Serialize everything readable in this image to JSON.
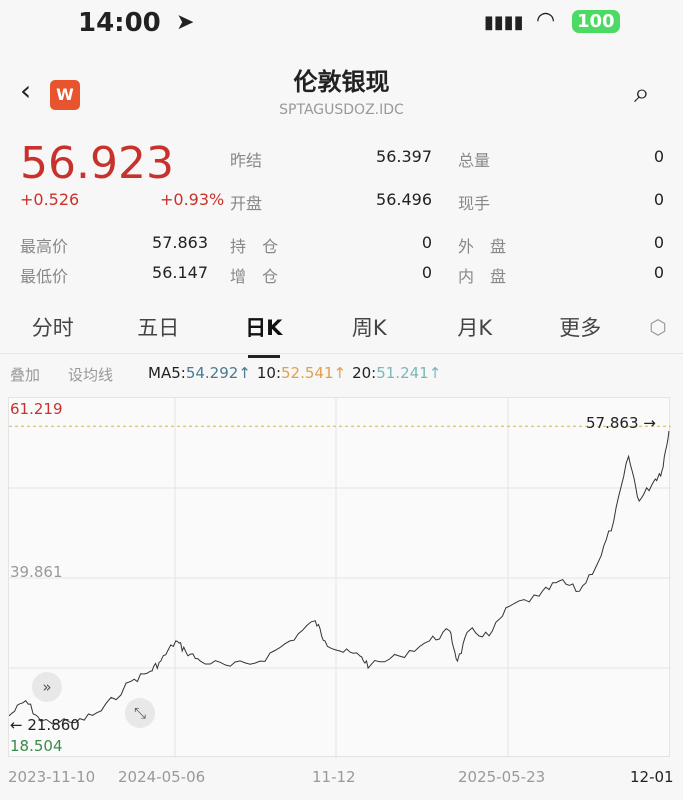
{
  "status": {
    "time": "14:00",
    "battery": "100"
  },
  "header": {
    "title": "伦敦银现",
    "code": "SPTAGUSDOZ.IDC",
    "logo": "W"
  },
  "quote": {
    "price": "56.923",
    "change": "+0.526",
    "change_pct": "+0.93%",
    "fields": [
      {
        "label": "昨结",
        "value": "56.397"
      },
      {
        "label": "总量",
        "value": "0"
      },
      {
        "label": "开盘",
        "value": "56.496"
      },
      {
        "label": "现手",
        "value": "0"
      },
      {
        "label": "最高价",
        "value": "57.863"
      },
      {
        "label": "持　仓",
        "value": "0"
      },
      {
        "label": "外　盘",
        "value": "0"
      },
      {
        "label": "最低价",
        "value": "56.147"
      },
      {
        "label": "增　仓",
        "value": "0"
      },
      {
        "label": "内　盘",
        "value": "0"
      }
    ]
  },
  "tabs": [
    {
      "label": "分时"
    },
    {
      "label": "五日"
    },
    {
      "label": "日K"
    },
    {
      "label": "周K"
    },
    {
      "label": "月K"
    },
    {
      "label": "更多"
    }
  ],
  "toolbar": {
    "overlay": "叠加",
    "ma_setting": "设均线",
    "ma5_label": "MA5:",
    "ma5": "54.292↑",
    "ma10_label": "10:",
    "ma10": "52.541↑",
    "ma20_label": "20:",
    "ma20": "51.241↑"
  },
  "colors": {
    "up": "#c8322d",
    "down": "#3a8a4a",
    "ma5": "#4a7a90",
    "ma10": "#e0a050",
    "ma20": "#7ab8b8"
  },
  "chart_data": {
    "type": "line",
    "ylim": [
      18.504,
      61.219
    ],
    "y_labels": [
      "61.219",
      "39.861",
      "18.504"
    ],
    "x_ticks": [
      "2023-11-10",
      "2024-05-06",
      "11-12",
      "2025-05-23",
      "12-01"
    ],
    "max_marker": "57.863 →",
    "min_marker": "← 21.860",
    "grid": true,
    "points": [
      [
        "2023-11-10",
        23.5
      ],
      [
        "2023-11-29",
        25.3
      ],
      [
        "2023-12-16",
        22.9
      ],
      [
        "2024-01-25",
        22.7
      ],
      [
        "2024-02-23",
        24.1
      ],
      [
        "2024-03-28",
        27.6
      ],
      [
        "2024-04-19",
        28.8
      ],
      [
        "2024-05-01",
        30.0
      ],
      [
        "2024-05-18",
        32.4
      ],
      [
        "2024-05-29",
        31.2
      ],
      [
        "2024-06-15",
        30.0
      ],
      [
        "2024-07-19",
        29.4
      ],
      [
        "2024-08-22",
        30.0
      ],
      [
        "2024-09-25",
        32.4
      ],
      [
        "2024-10-24",
        34.8
      ],
      [
        "2024-11-04",
        32.4
      ],
      [
        "2024-11-21",
        31.2
      ],
      [
        "2024-12-14",
        30.6
      ],
      [
        "2024-12-25",
        29.4
      ],
      [
        "2025-01-28",
        30.6
      ],
      [
        "2025-03-03",
        32.4
      ],
      [
        "2025-03-26",
        33.6
      ],
      [
        "2025-04-04",
        30.0
      ],
      [
        "2025-04-17",
        33.6
      ],
      [
        "2025-05-10",
        33.0
      ],
      [
        "2025-06-02",
        36.5
      ],
      [
        "2025-07-06",
        37.7
      ],
      [
        "2025-07-29",
        39.5
      ],
      [
        "2025-08-21",
        38.3
      ],
      [
        "2025-09-12",
        41.9
      ],
      [
        "2025-09-29",
        46.6
      ],
      [
        "2025-10-16",
        54.3
      ],
      [
        "2025-10-28",
        49.0
      ],
      [
        "2025-11-14",
        51.4
      ],
      [
        "2025-11-23",
        52.6
      ],
      [
        "2025-12-01",
        57.3
      ]
    ]
  }
}
